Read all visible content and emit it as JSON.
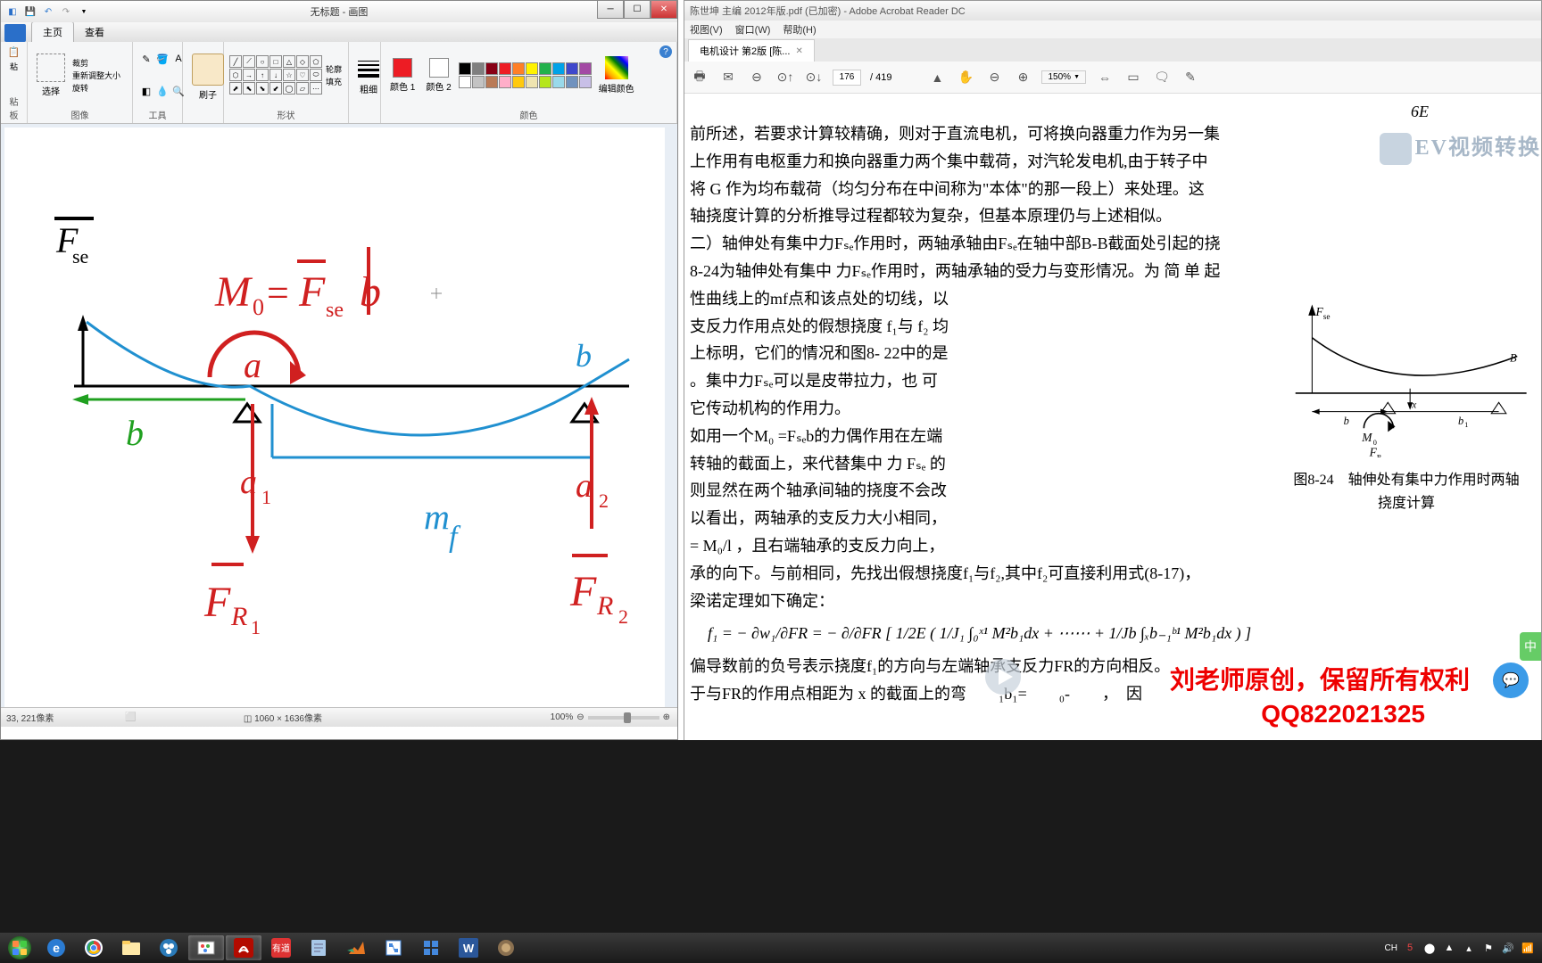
{
  "paint": {
    "title": "无标题 - 画图",
    "tabs": {
      "home": "主页",
      "view": "查看"
    },
    "groups": {
      "clipboard": {
        "label": "粘板",
        "paste": "粘"
      },
      "image": {
        "label": "图像",
        "select": "选择",
        "crop": "裁剪",
        "resize": "重新调整大小",
        "rotate": "旋转"
      },
      "tools": {
        "label": "工具"
      },
      "brush": {
        "label": "刷子"
      },
      "shapes": {
        "label": "形状",
        "outline": "轮廓",
        "fill": "填充"
      },
      "stroke": {
        "label": "粗细"
      },
      "colors": {
        "label": "颜色",
        "c1": "颜色 1",
        "c2": "颜色 2",
        "edit": "编辑颜色"
      }
    },
    "status": {
      "pos": "33, 221像素",
      "size": "1060 × 1636像素",
      "zoom": "100%"
    },
    "drawing": {
      "formula": "M₀=Fₛₑb",
      "labels": {
        "fse": "Fₛₑ",
        "a": "a",
        "b": "b",
        "b2": "b",
        "a1": "a₁",
        "a2": "a₂",
        "mf": "mf",
        "fr1": "FR₁",
        "fr2": "FR₂"
      },
      "colors": {
        "red": "#d02020",
        "blue": "#2090d0",
        "green": "#20a020",
        "black": "#000000"
      }
    },
    "palette": {
      "color1": "#ed1c24",
      "color2": "#ffffff",
      "row1": [
        "#000000",
        "#7f7f7f",
        "#880015",
        "#ed1c24",
        "#ff7f27",
        "#fff200",
        "#22b14c",
        "#00a2e8",
        "#3f48cc",
        "#a349a4"
      ],
      "row2": [
        "#ffffff",
        "#c3c3c3",
        "#b97a57",
        "#ffaec9",
        "#ffc90e",
        "#efe4b0",
        "#b5e61d",
        "#99d9ea",
        "#7092be",
        "#c8bfe7"
      ]
    }
  },
  "acrobat": {
    "title": "陈世坤 主编 2012年版.pdf (已加密) - Adobe Acrobat Reader DC",
    "menu": [
      "视图(V)",
      "窗口(W)",
      "帮助(H)"
    ],
    "tab": "电机设计 第2版 [陈...",
    "toolbar": {
      "page": "176",
      "total": "419",
      "zoom": "150%"
    },
    "watermark": "EV视频转换",
    "content": {
      "p1": "前所述，若要求计算较精确，则对于直流电机，可将换向器重力作为另一集",
      "p2": "上作用有电枢重力和换向器重力两个集中载荷，对汽轮发电机,由于转子中",
      "p3": "将 G 作为均布载荷（均匀分布在中间称为\"本体\"的那一段上）来处理。这",
      "p4": "轴挠度计算的分析推导过程都较为复杂，但基本原理仍与上述相似。",
      "p5": "二）轴伸处有集中力Fₛₑ作用时，两轴承轴由Fₛₑ在轴中部B-B截面处引起的挠",
      "p6": "8-24为轴伸处有集中 力Fₛₑ作用时，两轴承轴的受力与变形情况。为 简 单 起",
      "p7": "性曲线上的mf点和该点处的切线，以",
      "p8": "支反力作用点处的假想挠度 f₁与 f₂ 均",
      "p9": "上标明，它们的情况和图8- 22中的是",
      "p10": "。集中力Fₛₑ可以是皮带拉力，也 可",
      "p11": "它传动机构的作用力。",
      "p12": "如用一个M₀ =Fₛₑb的力偶作用在左端",
      "p13": "转轴的截面上，来代替集中 力 Fₛₑ 的",
      "p14": "则显然在两个轴承间轴的挠度不会改",
      "p15": "以看出，两轴承的支反力大小相同，",
      "p16": "= M₀/l ，且右端轴承的支反力向上，",
      "p17": "承的向下。与前相同，先找出假想挠度f₁与f₂,其中f₂可直接利用式(8-17)，",
      "p18": "梁诺定理如下确定：",
      "p19": "偏导数前的负号表示挠度f₁的方向与左端轴承支反力FR的方向相反。",
      "p20": "于与FR的作用点相距为 x 的截面上的弯　　₁b₁=　　₀-　　，　因",
      "fig_caption1": "图8-24　轴伸处有集中力作用时两轴",
      "fig_caption2": "挠度计算",
      "fig_labels": {
        "fse": "Fₛₑ",
        "m0": "M₀",
        "fr": "FR",
        "b": "b",
        "b1": "b₁",
        "x": "x",
        "B": "B"
      },
      "formula": "f₁ = − ∂w₁/∂FR = − ∂/∂FR [ 1/2E ( 1/J₁ ∫₀ˣ¹ M²b₁dx + ⋯⋯ + 1/Jb ∫ₓb₋₁ᵇ¹ M²b₁dx ) ]",
      "eq_top": "6E"
    },
    "overlays": {
      "credit": "刘老师原创，保留所有权利",
      "qq": "QQ822021325",
      "tag": "中"
    }
  },
  "taskbar": {
    "tray_text": "CH",
    "items": [
      "start",
      "ie",
      "chrome",
      "explorer",
      "app1",
      "paint",
      "acrobat",
      "dict",
      "note",
      "matlab",
      "sim",
      "calc",
      "word",
      "app2"
    ]
  }
}
